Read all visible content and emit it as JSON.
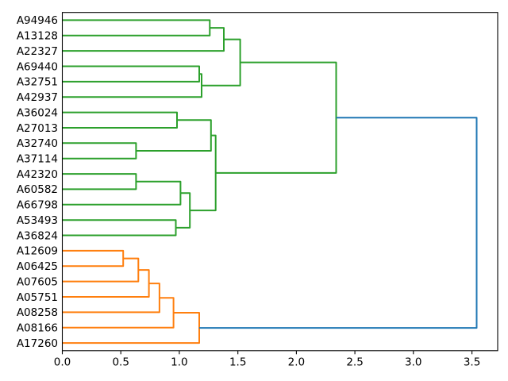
{
  "figure": {
    "background": "#ffffff",
    "spine_color": "#000000",
    "text_color": "#000000"
  },
  "chart_data": {
    "type": "dendrogram",
    "orientation": "leaves-left-root-right",
    "title": "",
    "xlabel": "",
    "ylabel": "",
    "grid": false,
    "leaf_labels": [
      "A94946",
      "A13128",
      "A22327",
      "A69440",
      "A32751",
      "A42937",
      "A36024",
      "A27013",
      "A32740",
      "A37114",
      "A42320",
      "A60582",
      "A66798",
      "A53493",
      "A36824",
      "A12609",
      "A06425",
      "A07605",
      "A05751",
      "A08258",
      "A08166",
      "A17260"
    ],
    "x_axis": {
      "tick_labels": [
        "0.0",
        "0.5",
        "1.0",
        "1.5",
        "2.0",
        "2.5",
        "3.0",
        "3.5"
      ],
      "tick_values": [
        0.0,
        0.5,
        1.0,
        1.5,
        2.0,
        2.5,
        3.0,
        3.5
      ],
      "range": [
        0,
        3.72
      ]
    },
    "link_colors": {
      "green": "#2ca02c",
      "orange": "#ff7f0e",
      "blue": "#1f77b4"
    },
    "links": [
      {
        "id": "G1",
        "a": "A94946",
        "b": "A13128",
        "distance": 1.26,
        "color": "green"
      },
      {
        "id": "G2",
        "a": "G1",
        "b": "A22327",
        "distance": 1.38,
        "color": "green"
      },
      {
        "id": "G3",
        "a": "A69440",
        "b": "A32751",
        "distance": 1.17,
        "color": "green"
      },
      {
        "id": "G4",
        "a": "G3",
        "b": "A42937",
        "distance": 1.19,
        "color": "green"
      },
      {
        "id": "G5",
        "a": "G2",
        "b": "G4",
        "distance": 1.52,
        "color": "green"
      },
      {
        "id": "G6",
        "a": "A36024",
        "b": "A27013",
        "distance": 0.98,
        "color": "green"
      },
      {
        "id": "G7",
        "a": "A32740",
        "b": "A37114",
        "distance": 0.63,
        "color": "green"
      },
      {
        "id": "G8",
        "a": "G6",
        "b": "G7",
        "distance": 1.27,
        "color": "green"
      },
      {
        "id": "G9",
        "a": "A42320",
        "b": "A60582",
        "distance": 0.63,
        "color": "green"
      },
      {
        "id": "G10",
        "a": "G9",
        "b": "A66798",
        "distance": 1.01,
        "color": "green"
      },
      {
        "id": "G11",
        "a": "A53493",
        "b": "A36824",
        "distance": 0.97,
        "color": "green"
      },
      {
        "id": "G12",
        "a": "G10",
        "b": "G11",
        "distance": 1.09,
        "color": "green"
      },
      {
        "id": "G13",
        "a": "G8",
        "b": "G12",
        "distance": 1.31,
        "color": "green"
      },
      {
        "id": "G14",
        "a": "G5",
        "b": "G13",
        "distance": 2.34,
        "color": "green"
      },
      {
        "id": "O1",
        "a": "A12609",
        "b": "A06425",
        "distance": 0.52,
        "color": "orange"
      },
      {
        "id": "O2",
        "a": "O1",
        "b": "A07605",
        "distance": 0.65,
        "color": "orange"
      },
      {
        "id": "O3",
        "a": "O2",
        "b": "A05751",
        "distance": 0.74,
        "color": "orange"
      },
      {
        "id": "O4",
        "a": "O3",
        "b": "A08258",
        "distance": 0.83,
        "color": "orange"
      },
      {
        "id": "O5",
        "a": "O4",
        "b": "A08166",
        "distance": 0.95,
        "color": "orange"
      },
      {
        "id": "O6",
        "a": "O5",
        "b": "A17260",
        "distance": 1.17,
        "color": "orange"
      },
      {
        "id": "ROOT",
        "a": "G14",
        "b": "O6",
        "distance": 3.54,
        "color": "blue"
      }
    ]
  }
}
